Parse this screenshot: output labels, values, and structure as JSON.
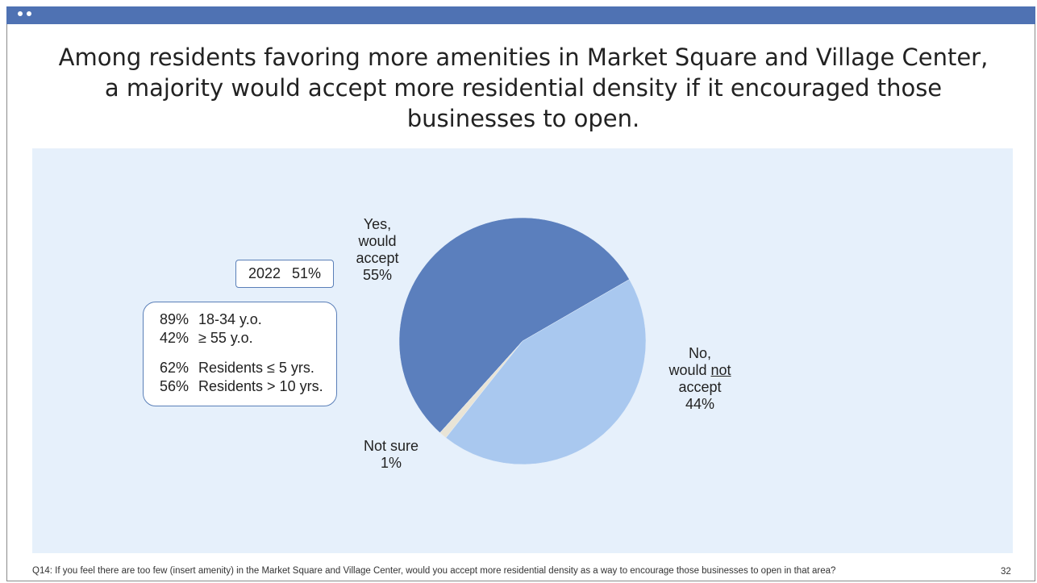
{
  "title": "Among residents favoring more amenities in Market Square and Village Center, a majority would accept more residential density if it encouraged those businesses to open.",
  "chart_data": {
    "type": "pie",
    "title": "Among residents favoring more amenities in Market Square and Village Center, a majority would accept more residential density if it encouraged those businesses to open.",
    "slices": [
      {
        "name": "Yes, would accept",
        "value": 55,
        "color": "#5b7fbd"
      },
      {
        "name": "Not sure",
        "value": 1,
        "color": "#e9e4d6"
      },
      {
        "name": "No, would not accept",
        "value": 44,
        "color": "#a9c8ef"
      }
    ]
  },
  "labels": {
    "yes": {
      "l1": "Yes,",
      "l2": "would",
      "l3": "accept",
      "pct": "55%"
    },
    "no": {
      "l1": "No,",
      "l2a": "would ",
      "l2b": "not",
      "l3": "accept",
      "pct": "44%"
    },
    "unsure": {
      "l1": "Not sure",
      "pct": "1%"
    }
  },
  "box_2022": {
    "year": "2022",
    "value": "51%"
  },
  "demographics": [
    {
      "pct": "89%",
      "label": "18-34 y.o."
    },
    {
      "pct": "42%",
      "label": "≥ 55 y.o."
    },
    {
      "pct": "62%",
      "label": "Residents ≤ 5 yrs."
    },
    {
      "pct": "56%",
      "label": "Residents > 10 yrs."
    }
  ],
  "footer": "Q14: If you feel there are too few (insert amenity) in the Market Square and Village Center, would you accept more residential density as a way to encourage those businesses to open in that area?",
  "page_number": "32",
  "colors": {
    "top_bar": "#4f72b3",
    "panel_bg": "#e6f0fb",
    "box_border": "#5a7fb8"
  }
}
